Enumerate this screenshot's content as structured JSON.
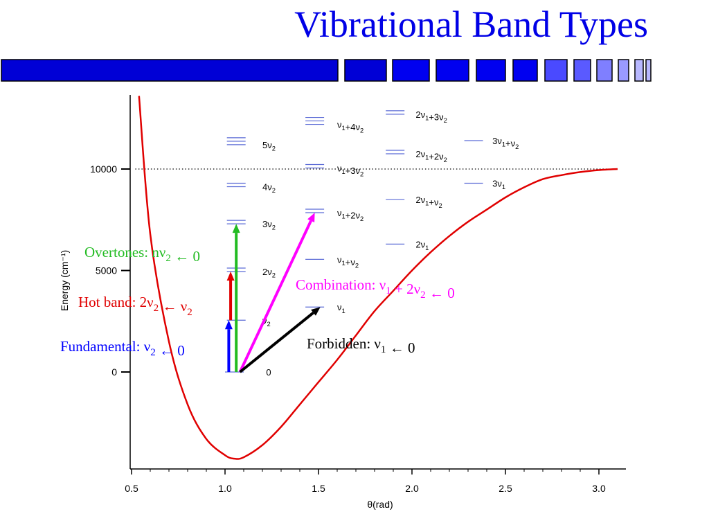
{
  "slide": {
    "title": "Vibrational Band Types",
    "banner_colors": [
      "#0000d6",
      "#0000d6",
      "#0000f0",
      "#0000f0",
      "#0000f0",
      "#0000f0",
      "#4a4aff",
      "#5a5aff",
      "#7f7fff",
      "#9a9aff",
      "#b8b8ff",
      "#b8b8ff"
    ]
  },
  "chart_data": {
    "type": "line",
    "xlabel": "θ(rad)",
    "ylabel": "Energy (cm⁻¹)",
    "xlim": [
      0.5,
      3.13
    ],
    "ylim": [
      -4700,
      13700
    ],
    "x_ticks": [
      0.5,
      1.0,
      1.5,
      2.0,
      2.5,
      3.0
    ],
    "x_tick_labels": [
      "0.5",
      "1.0",
      "1.5",
      "2.0",
      "2.5",
      "3.0"
    ],
    "y_ticks": [
      0,
      5000,
      10000
    ],
    "y_tick_labels": [
      "0",
      "5000",
      "10000"
    ],
    "grid": false,
    "dissociation_line": {
      "y": 10000,
      "style": "dotted"
    },
    "potential_curve": {
      "color": "#e00000",
      "x": [
        0.54,
        0.6,
        0.7,
        0.8,
        0.9,
        1.0,
        1.05,
        1.1,
        1.2,
        1.3,
        1.4,
        1.5,
        1.6,
        1.7,
        1.8,
        1.9,
        2.0,
        2.1,
        2.2,
        2.3,
        2.4,
        2.5,
        2.6,
        2.7,
        2.8,
        2.9,
        3.0,
        3.1
      ],
      "y": [
        13600,
        6800,
        1500,
        -1600,
        -3300,
        -4100,
        -4270,
        -4200,
        -3600,
        -2700,
        -1600,
        -500,
        600,
        1800,
        3000,
        4000,
        5000,
        5900,
        6700,
        7400,
        8000,
        8600,
        9100,
        9500,
        9700,
        9850,
        9950,
        10000
      ]
    },
    "levels": [
      {
        "label": "0",
        "y": 0,
        "x": [
          1.0,
          1.1
        ],
        "count": 1,
        "label_x": 1.22
      },
      {
        "label": "ν2",
        "y": 2550,
        "x": [
          1.01,
          1.11
        ],
        "count": 1,
        "label_x": 1.2
      },
      {
        "label": "2ν2",
        "y": 4950,
        "x": [
          1.01,
          1.11
        ],
        "count": 2,
        "label_x": 1.2
      },
      {
        "label": "3ν2",
        "y": 7300,
        "x": [
          1.01,
          1.11
        ],
        "count": 2,
        "label_x": 1.2
      },
      {
        "label": "4ν2",
        "y": 9130,
        "x": [
          1.01,
          1.11
        ],
        "count": 2,
        "label_x": 1.2
      },
      {
        "label": "5ν2",
        "y": 11200,
        "x": [
          1.01,
          1.11
        ],
        "count": 3,
        "label_x": 1.2
      },
      {
        "label": "ν1",
        "y": 3200,
        "x": [
          1.43,
          1.53
        ],
        "count": 1,
        "label_x": 1.6
      },
      {
        "label": "ν1+ν2",
        "y": 5550,
        "x": [
          1.43,
          1.53
        ],
        "count": 1,
        "label_x": 1.6
      },
      {
        "label": "ν1+2ν2",
        "y": 7850,
        "x": [
          1.43,
          1.53
        ],
        "count": 2,
        "label_x": 1.6
      },
      {
        "label": "ν1+3ν2",
        "y": 10050,
        "x": [
          1.43,
          1.53
        ],
        "count": 2,
        "label_x": 1.6
      },
      {
        "label": "ν1+4ν2",
        "y": 12200,
        "x": [
          1.43,
          1.53
        ],
        "count": 3,
        "label_x": 1.6
      },
      {
        "label": "2ν1",
        "y": 6300,
        "x": [
          1.86,
          1.96
        ],
        "count": 1,
        "label_x": 2.02
      },
      {
        "label": "2ν1+ν2",
        "y": 8500,
        "x": [
          1.86,
          1.96
        ],
        "count": 1,
        "label_x": 2.02
      },
      {
        "label": "2ν1+2ν2",
        "y": 10750,
        "x": [
          1.86,
          1.96
        ],
        "count": 2,
        "label_x": 2.02
      },
      {
        "label": "2ν1+3ν2",
        "y": 12700,
        "x": [
          1.86,
          1.96
        ],
        "count": 2,
        "label_x": 2.02
      },
      {
        "label": "3ν1",
        "y": 9300,
        "x": [
          2.28,
          2.38
        ],
        "count": 1,
        "label_x": 2.43
      },
      {
        "label": "3ν1+ν2",
        "y": 11400,
        "x": [
          2.28,
          2.38
        ],
        "count": 1,
        "label_x": 2.43
      }
    ],
    "arrows": [
      {
        "name": "fundamental-arrow",
        "color": "#0000ff",
        "from": [
          1.02,
          0
        ],
        "to": [
          1.02,
          2550
        ]
      },
      {
        "name": "hot-band-arrow",
        "color": "#e00000",
        "from": [
          1.03,
          2550
        ],
        "to": [
          1.03,
          4950
        ]
      },
      {
        "name": "overtone-arrow",
        "color": "#22bb22",
        "from": [
          1.06,
          0
        ],
        "to": [
          1.06,
          7300
        ]
      },
      {
        "name": "combination-arrow",
        "color": "#ff00ff",
        "from": [
          1.08,
          0
        ],
        "to": [
          1.48,
          7850
        ]
      },
      {
        "name": "forbidden-arrow",
        "color": "#000000",
        "from": [
          1.08,
          0
        ],
        "to": [
          1.51,
          3200
        ]
      }
    ],
    "annotations": [
      {
        "name": "overtones-annotation",
        "text": "Overtones: nν2 ← 0",
        "color": "#22bb22"
      },
      {
        "name": "combination-annotation",
        "text": "Combination: ν1 + 2ν2 ← 0",
        "color": "#ff00ff"
      },
      {
        "name": "hot-band-annotation",
        "text": "Hot band: 2ν2 ← ν2",
        "color": "#e00000"
      },
      {
        "name": "fundamental-annotation",
        "text": "Fundamental: ν2 ← 0",
        "color": "#0000ff"
      },
      {
        "name": "forbidden-annotation",
        "text": "Forbidden: ν1 ← 0",
        "color": "#000000"
      }
    ]
  }
}
